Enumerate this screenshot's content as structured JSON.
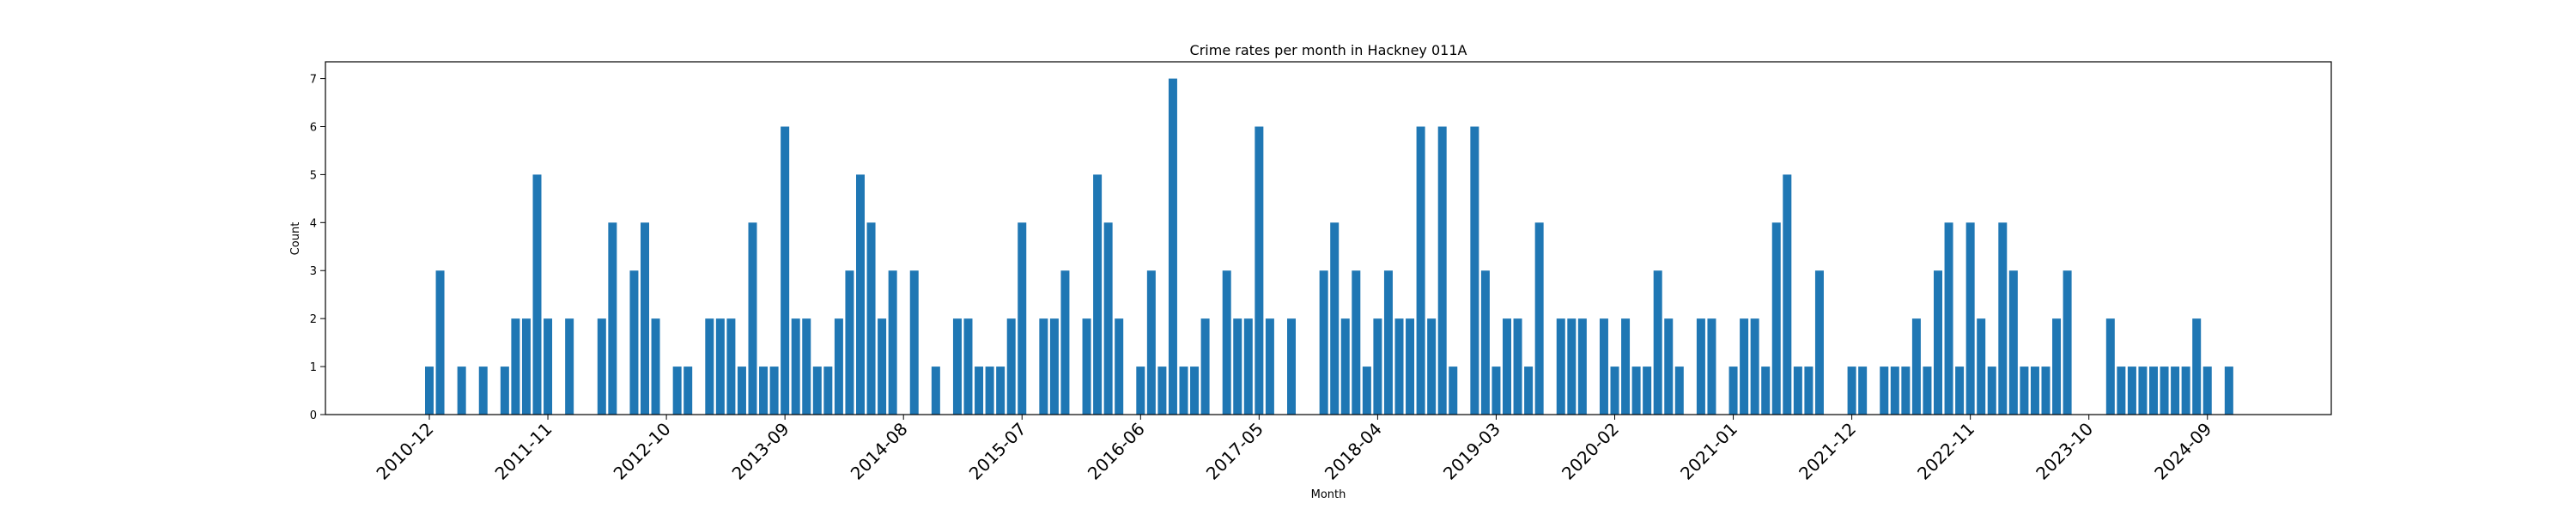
{
  "chart_data": {
    "type": "bar",
    "title": "Crime rates per month in Hackney 011A",
    "xlabel": "Month",
    "ylabel": "Count",
    "ylim": [
      0,
      7.35
    ],
    "y_ticks": [
      0,
      1,
      2,
      3,
      4,
      5,
      6,
      7
    ],
    "grid": false,
    "legend": "none",
    "bar_color": "#1f77b4",
    "x_tick_labels": [
      {
        "label": "2010-12",
        "index": 0
      },
      {
        "label": "2011-11",
        "index": 11
      },
      {
        "label": "2012-10",
        "index": 22
      },
      {
        "label": "2013-09",
        "index": 33
      },
      {
        "label": "2014-08",
        "index": 44
      },
      {
        "label": "2015-07",
        "index": 55
      },
      {
        "label": "2016-06",
        "index": 66
      },
      {
        "label": "2017-05",
        "index": 77
      },
      {
        "label": "2018-04",
        "index": 88
      },
      {
        "label": "2019-03",
        "index": 99
      },
      {
        "label": "2020-02",
        "index": 110
      },
      {
        "label": "2021-01",
        "index": 121
      },
      {
        "label": "2021-12",
        "index": 132
      },
      {
        "label": "2022-11",
        "index": 143
      },
      {
        "label": "2023-10",
        "index": 154
      },
      {
        "label": "2024-09",
        "index": 165
      }
    ],
    "categories": [
      "2010-12",
      "2011-01",
      "2011-02",
      "2011-03",
      "2011-04",
      "2011-05",
      "2011-06",
      "2011-07",
      "2011-08",
      "2011-09",
      "2011-10",
      "2011-11",
      "2011-12",
      "2012-01",
      "2012-02",
      "2012-03",
      "2012-04",
      "2012-05",
      "2012-06",
      "2012-07",
      "2012-08",
      "2012-09",
      "2012-10",
      "2012-11",
      "2012-12",
      "2013-01",
      "2013-02",
      "2013-03",
      "2013-04",
      "2013-05",
      "2013-06",
      "2013-07",
      "2013-08",
      "2013-09",
      "2013-10",
      "2013-11",
      "2013-12",
      "2014-01",
      "2014-02",
      "2014-03",
      "2014-04",
      "2014-05",
      "2014-06",
      "2014-07",
      "2014-08",
      "2014-09",
      "2014-10",
      "2014-11",
      "2014-12",
      "2015-01",
      "2015-02",
      "2015-03",
      "2015-04",
      "2015-05",
      "2015-06",
      "2015-07",
      "2015-08",
      "2015-09",
      "2015-10",
      "2015-11",
      "2015-12",
      "2016-01",
      "2016-02",
      "2016-03",
      "2016-04",
      "2016-05",
      "2016-06",
      "2016-07",
      "2016-08",
      "2016-09",
      "2016-10",
      "2016-11",
      "2016-12",
      "2017-01",
      "2017-02",
      "2017-03",
      "2017-04",
      "2017-05",
      "2017-06",
      "2017-07",
      "2017-08",
      "2017-09",
      "2017-10",
      "2017-11",
      "2017-12",
      "2018-01",
      "2018-02",
      "2018-03",
      "2018-04",
      "2018-05",
      "2018-06",
      "2018-07",
      "2018-08",
      "2018-09",
      "2018-10",
      "2018-11",
      "2018-12",
      "2019-01",
      "2019-02",
      "2019-03",
      "2019-04",
      "2019-05",
      "2019-06",
      "2019-07",
      "2019-08",
      "2019-09",
      "2019-10",
      "2019-11",
      "2019-12",
      "2020-01",
      "2020-02",
      "2020-03",
      "2020-04",
      "2020-05",
      "2020-06",
      "2020-07",
      "2020-08",
      "2020-09",
      "2020-10",
      "2020-11",
      "2020-12",
      "2021-01",
      "2021-02",
      "2021-03",
      "2021-04",
      "2021-05",
      "2021-06",
      "2021-07",
      "2021-08",
      "2021-09",
      "2021-10",
      "2021-11",
      "2021-12",
      "2022-01",
      "2022-02",
      "2022-03",
      "2022-04",
      "2022-05",
      "2022-06",
      "2022-07",
      "2022-08",
      "2022-09",
      "2022-10",
      "2022-11",
      "2022-12",
      "2023-01",
      "2023-02",
      "2023-03",
      "2023-04",
      "2023-05",
      "2023-06",
      "2023-07",
      "2023-08",
      "2023-09",
      "2023-10",
      "2023-11",
      "2023-12",
      "2024-01",
      "2024-02",
      "2024-03",
      "2024-04",
      "2024-05",
      "2024-06",
      "2024-07",
      "2024-08",
      "2024-09",
      "2024-10",
      "2024-11"
    ],
    "values": [
      1,
      3,
      0,
      1,
      0,
      1,
      0,
      1,
      2,
      2,
      5,
      2,
      0,
      2,
      0,
      0,
      2,
      4,
      0,
      3,
      4,
      2,
      0,
      1,
      1,
      0,
      2,
      2,
      2,
      1,
      4,
      1,
      1,
      6,
      2,
      2,
      1,
      1,
      2,
      3,
      5,
      4,
      2,
      3,
      0,
      3,
      0,
      1,
      0,
      2,
      2,
      1,
      1,
      1,
      2,
      4,
      0,
      2,
      2,
      3,
      0,
      2,
      5,
      4,
      2,
      0,
      1,
      3,
      1,
      7,
      1,
      1,
      2,
      0,
      3,
      2,
      2,
      6,
      2,
      0,
      2,
      0,
      0,
      3,
      4,
      2,
      3,
      1,
      2,
      3,
      2,
      2,
      6,
      2,
      6,
      1,
      0,
      6,
      3,
      1,
      2,
      2,
      1,
      4,
      0,
      2,
      2,
      2,
      0,
      2,
      1,
      2,
      1,
      1,
      3,
      2,
      1,
      0,
      2,
      2,
      0,
      1,
      2,
      2,
      1,
      4,
      5,
      1,
      1,
      3,
      0,
      0,
      1,
      1,
      0,
      1,
      1,
      1,
      2,
      1,
      3,
      4,
      1,
      4,
      2,
      1,
      4,
      3,
      1,
      1,
      1,
      2,
      3,
      0,
      0,
      0,
      2,
      1,
      1,
      1,
      1,
      1,
      1,
      1,
      2,
      1,
      0,
      1
    ]
  }
}
